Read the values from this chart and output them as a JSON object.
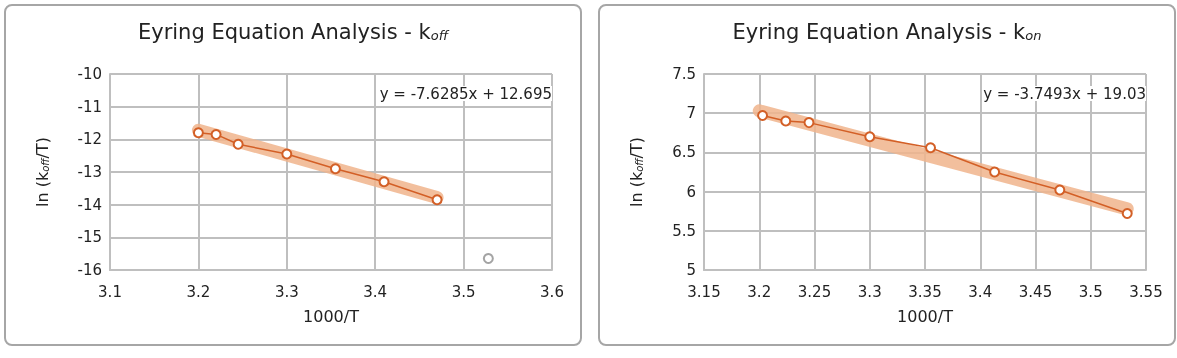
{
  "chart_data": [
    {
      "type": "line",
      "title": "Eyring Equation Analysis - k$_{off}$",
      "xlabel": "1000/T",
      "ylabel": "ln (k$_{off}$/T)",
      "xlim": [
        3.1,
        3.6
      ],
      "xticks": [
        3.1,
        3.2,
        3.3,
        3.4,
        3.5,
        3.6
      ],
      "ylim": [
        -16,
        -10
      ],
      "yticks": [
        -16,
        -15,
        -14,
        -13,
        -12,
        -11,
        -10
      ],
      "grid": true,
      "marker": "circle",
      "annotations": [
        "y = -7.6285x + 12.695"
      ],
      "series": [
        {
          "marker": "none",
          "color": "#f0b48c",
          "x": [
            3.2,
            3.47
          ],
          "values": [
            -11.72,
            -13.78
          ]
        },
        {
          "color": "#d35f26",
          "x": [
            3.2,
            3.22,
            3.245,
            3.3,
            3.355,
            3.41,
            3.47
          ],
          "values": [
            -11.8,
            -11.85,
            -12.15,
            -12.45,
            -12.9,
            -13.3,
            -13.85
          ]
        },
        {
          "type": "scatter",
          "color": "#8c8c8c",
          "x": [
            3.528
          ],
          "values": [
            -15.65
          ]
        }
      ]
    },
    {
      "type": "line",
      "title": "Eyring Equation Analysis - k$_{on}$",
      "xlabel": "1000/T",
      "ylabel": "ln (k$_{off}$/T)",
      "xlim": [
        3.15,
        3.55
      ],
      "xticks": [
        3.15,
        3.2,
        3.25,
        3.3,
        3.35,
        3.4,
        3.45,
        3.5,
        3.55
      ],
      "ylim": [
        5,
        7.5
      ],
      "yticks": [
        5,
        5.5,
        6,
        6.5,
        7,
        7.5
      ],
      "grid": true,
      "marker": "circle",
      "annotations": [
        "y = -3.7493x + 19.03"
      ],
      "series": [
        {
          "marker": "none",
          "color": "#f0b48c",
          "x": [
            3.2,
            3.533
          ],
          "values": [
            7.03,
            5.78
          ]
        },
        {
          "color": "#d35f26",
          "x": [
            3.203,
            3.224,
            3.245,
            3.3,
            3.355,
            3.413,
            3.472,
            3.533
          ],
          "values": [
            6.97,
            6.9,
            6.88,
            6.7,
            6.56,
            6.25,
            6.02,
            5.72
          ]
        }
      ]
    }
  ]
}
